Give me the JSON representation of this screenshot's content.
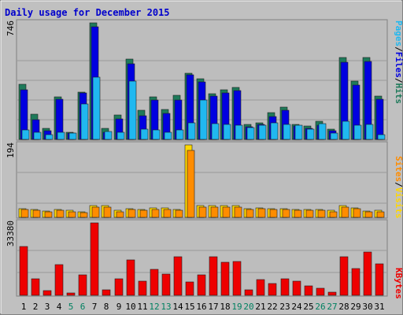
{
  "chart_data": {
    "type": "bar",
    "title": "Daily usage for December 2015",
    "categories": [
      "1",
      "2",
      "3",
      "4",
      "5",
      "6",
      "7",
      "8",
      "9",
      "10",
      "11",
      "12",
      "13",
      "14",
      "15",
      "16",
      "17",
      "18",
      "19",
      "20",
      "21",
      "22",
      "23",
      "24",
      "25",
      "26",
      "27",
      "28",
      "29",
      "30",
      "31"
    ],
    "weekend_days": [
      "5",
      "6",
      "12",
      "13",
      "19",
      "20",
      "26",
      "27"
    ],
    "colors": {
      "background": "#c0c0c0",
      "plot_background": "#bdbdbd",
      "hits": "#1e7a5a",
      "files": "#0000e0",
      "pages": "#20b8f0",
      "visits": "#ffd700",
      "sites": "#ff8c00",
      "kbytes": "#ee0000",
      "title": "#0000cc",
      "weekend_label": "#008060"
    },
    "panels": [
      {
        "id": "hits-files-pages",
        "ymax_label": "746",
        "ymax": 746,
        "legend": [
          {
            "text": "Pages",
            "color": "#20b8f0"
          },
          {
            "text": "/",
            "color": "#000000"
          },
          {
            "text": "Files",
            "color": "#0000e0"
          },
          {
            "text": "/",
            "color": "#000000"
          },
          {
            "text": "Hits",
            "color": "#1e7a5a"
          }
        ],
        "series": [
          {
            "name": "Hits",
            "values": [
              353,
              163,
              72,
              273,
              44,
              304,
              746,
              70,
              154,
              515,
              189,
              271,
              193,
              281,
              425,
              390,
              291,
              317,
              332,
              96,
              105,
              172,
              206,
              97,
              86,
              115,
              67,
              523,
              374,
              525,
              275
            ]
          },
          {
            "name": "Files",
            "values": [
              319,
              124,
              57,
              258,
              39,
              296,
              719,
              47,
              131,
              486,
              149,
              251,
              168,
              252,
              411,
              369,
              275,
              296,
              312,
              83,
              94,
              148,
              187,
              84,
              73,
              93,
              55,
              494,
              349,
              500,
              259
            ]
          },
          {
            "name": "Pages",
            "values": [
              60,
              46,
              31,
              46,
              38,
              228,
              399,
              48,
              47,
              374,
              64,
              60,
              46,
              60,
              105,
              253,
              101,
              96,
              93,
              76,
              93,
              105,
              94,
              89,
              65,
              99,
              38,
              114,
              90,
              98,
              32
            ]
          }
        ]
      },
      {
        "id": "visits-sites",
        "ymax_label": "194",
        "ymax": 194,
        "legend": [
          {
            "text": "Sites",
            "color": "#ff8c00"
          },
          {
            "text": "/",
            "color": "#000000"
          },
          {
            "text": "Visits",
            "color": "#ffd700"
          }
        ],
        "series": [
          {
            "name": "Visits",
            "values": [
              24,
              22,
              17,
              22,
              18,
              15,
              32,
              32,
              18,
              24,
              22,
              25,
              25,
              22,
              194,
              32,
              32,
              32,
              32,
              24,
              26,
              24,
              24,
              22,
              22,
              22,
              18,
              32,
              26,
              16,
              18
            ]
          },
          {
            "name": "Sites",
            "values": [
              21,
              19,
              15,
              19,
              15,
              13,
              28,
              28,
              15,
              21,
              19,
              22,
              22,
              19,
              180,
              28,
              28,
              28,
              28,
              21,
              23,
              21,
              21,
              19,
              19,
              19,
              15,
              28,
              23,
              14,
              15
            ]
          }
        ]
      },
      {
        "id": "kbytes",
        "ymax_label": "33380",
        "ymax": 33380,
        "legend": [
          {
            "text": "KBytes",
            "color": "#ee0000"
          }
        ],
        "series": [
          {
            "name": "KBytes",
            "values": [
              22400,
              7800,
              2300,
              14200,
              1200,
              9600,
              33380,
              2400,
              7800,
              16500,
              6600,
              12100,
              9900,
              17700,
              6100,
              9400,
              17800,
              15100,
              15600,
              2600,
              7300,
              5400,
              7700,
              6600,
              4500,
              3200,
              1400,
              17800,
              12400,
              20000,
              14600
            ]
          }
        ]
      }
    ]
  }
}
